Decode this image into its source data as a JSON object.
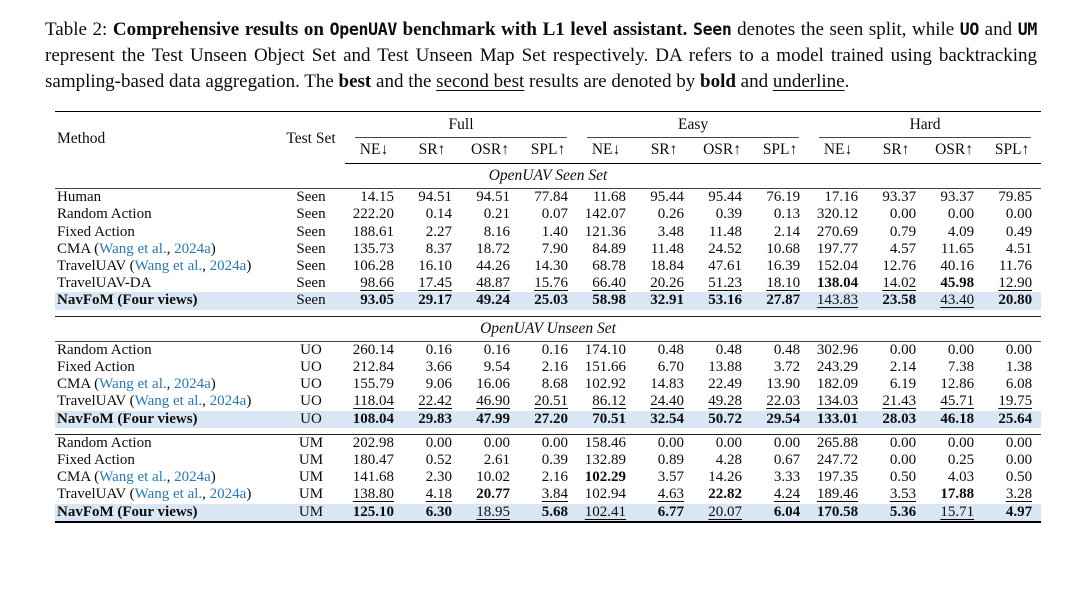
{
  "colors": {
    "highlight_row": "#d9e7f4",
    "citation_link": "#2878b5",
    "rule": "#000000",
    "background": "#ffffff"
  },
  "caption": {
    "label": "Table 2: ",
    "segments": [
      {
        "text": "Comprehensive results on ",
        "style": "bold"
      },
      {
        "text": "OpenUAV",
        "style": "bold-mono"
      },
      {
        "text": " benchmark with L1 level assistant. ",
        "style": "bold"
      },
      {
        "text": "Seen",
        "style": "bold-mono"
      },
      {
        "text": " denotes the seen split, while ",
        "style": "plain"
      },
      {
        "text": "UO",
        "style": "bold-mono"
      },
      {
        "text": " and ",
        "style": "plain"
      },
      {
        "text": "UM",
        "style": "bold-mono"
      },
      {
        "text": " represent the Test Unseen Object Set and Test Unseen Map Set respectively. DA refers to a model trained using backtracking sampling-based data aggregation. The ",
        "style": "plain"
      },
      {
        "text": "best",
        "style": "bold"
      },
      {
        "text": " and the ",
        "style": "plain"
      },
      {
        "text": "second best",
        "style": "underline"
      },
      {
        "text": " results are denoted by ",
        "style": "plain"
      },
      {
        "text": "bold",
        "style": "bold"
      },
      {
        "text": " and ",
        "style": "plain"
      },
      {
        "text": "underline",
        "style": "underline"
      },
      {
        "text": ".",
        "style": "plain"
      }
    ]
  },
  "table": {
    "header": {
      "method": "Method",
      "test_set": "Test Set",
      "groups": [
        {
          "label": "Full"
        },
        {
          "label": "Easy"
        },
        {
          "label": "Hard"
        }
      ],
      "metrics": [
        "NE↓",
        "SR↑",
        "OSR↑",
        "SPL↑"
      ]
    },
    "body": [
      {
        "type": "section",
        "label": "OpenUAV Seen Set"
      },
      {
        "type": "group",
        "rows": [
          {
            "method": "Human",
            "test_set": "Seen",
            "values": [
              "14.15",
              "94.51",
              "94.51",
              "77.84",
              "11.68",
              "95.44",
              "95.44",
              "76.19",
              "17.16",
              "93.37",
              "93.37",
              "79.85"
            ]
          },
          {
            "method": "Random Action",
            "test_set": "Seen",
            "values": [
              "222.20",
              "0.14",
              "0.21",
              "0.07",
              "142.07",
              "0.26",
              "0.39",
              "0.13",
              "320.12",
              "0.00",
              "0.00",
              "0.00"
            ]
          },
          {
            "method": "Fixed Action",
            "test_set": "Seen",
            "values": [
              "188.61",
              "2.27",
              "8.16",
              "1.40",
              "121.36",
              "3.48",
              "11.48",
              "2.14",
              "270.69",
              "0.79",
              "4.09",
              "0.49"
            ]
          },
          {
            "method": "CMA",
            "cite": {
              "authors": "Wang et al.",
              "year": "2024a"
            },
            "test_set": "Seen",
            "values": [
              "135.73",
              "8.37",
              "18.72",
              "7.90",
              "84.89",
              "11.48",
              "24.52",
              "10.68",
              "197.77",
              "4.57",
              "11.65",
              "4.51"
            ]
          },
          {
            "method": "TravelUAV",
            "cite": {
              "authors": "Wang et al.",
              "year": "2024a"
            },
            "test_set": "Seen",
            "values": [
              "106.28",
              "16.10",
              "44.26",
              "14.30",
              "68.78",
              "18.84",
              "47.61",
              "16.39",
              "152.04",
              "12.76",
              "40.16",
              "11.76"
            ]
          },
          {
            "method": "TravelUAV-DA",
            "test_set": "Seen",
            "values": [
              "98.66|u",
              "17.45|u",
              "48.87|u",
              "15.76|u",
              "66.40|u",
              "20.26|u",
              "51.23|u",
              "18.10|u",
              "138.04|b",
              "14.02|u",
              "45.98|b",
              "12.90|u"
            ]
          },
          {
            "method": "NavFoM (Four views)",
            "bold_method": true,
            "highlight": true,
            "test_set": "Seen",
            "values": [
              "93.05|b",
              "29.17|b",
              "49.24|b",
              "25.03|b",
              "58.98|b",
              "32.91|b",
              "53.16|b",
              "27.87|b",
              "143.83|u",
              "23.58|b",
              "43.40|u",
              "20.80|b"
            ]
          }
        ]
      },
      {
        "type": "section",
        "label": "OpenUAV Unseen Set"
      },
      {
        "type": "group",
        "rows": [
          {
            "method": "Random Action",
            "test_set": "UO",
            "values": [
              "260.14",
              "0.16",
              "0.16",
              "0.16",
              "174.10",
              "0.48",
              "0.48",
              "0.48",
              "302.96",
              "0.00",
              "0.00",
              "0.00"
            ]
          },
          {
            "method": "Fixed Action",
            "test_set": "UO",
            "values": [
              "212.84",
              "3.66",
              "9.54",
              "2.16",
              "151.66",
              "6.70",
              "13.88",
              "3.72",
              "243.29",
              "2.14",
              "7.38",
              "1.38"
            ]
          },
          {
            "method": "CMA",
            "cite": {
              "authors": "Wang et al.",
              "year": "2024a"
            },
            "test_set": "UO",
            "values": [
              "155.79",
              "9.06",
              "16.06",
              "8.68",
              "102.92",
              "14.83",
              "22.49",
              "13.90",
              "182.09",
              "6.19",
              "12.86",
              "6.08"
            ]
          },
          {
            "method": "TravelUAV",
            "cite": {
              "authors": "Wang et al.",
              "year": "2024a"
            },
            "test_set": "UO",
            "values": [
              "118.04|u",
              "22.42|u",
              "46.90|u",
              "20.51|u",
              "86.12|u",
              "24.40|u",
              "49.28|u",
              "22.03|u",
              "134.03|u",
              "21.43|u",
              "45.71|u",
              "19.75|u"
            ]
          },
          {
            "method": "NavFoM (Four views)",
            "bold_method": true,
            "highlight": true,
            "test_set": "UO",
            "values": [
              "108.04|b",
              "29.83|b",
              "47.99|b",
              "27.20|b",
              "70.51|b",
              "32.54|b",
              "50.72|b",
              "29.54|b",
              "133.01|b",
              "28.03|b",
              "46.18|b",
              "25.64|b"
            ]
          }
        ]
      },
      {
        "type": "group",
        "rows": [
          {
            "method": "Random Action",
            "test_set": "UM",
            "values": [
              "202.98",
              "0.00",
              "0.00",
              "0.00",
              "158.46",
              "0.00",
              "0.00",
              "0.00",
              "265.88",
              "0.00",
              "0.00",
              "0.00"
            ]
          },
          {
            "method": "Fixed Action",
            "test_set": "UM",
            "values": [
              "180.47",
              "0.52",
              "2.61",
              "0.39",
              "132.89",
              "0.89",
              "4.28",
              "0.67",
              "247.72",
              "0.00",
              "0.25",
              "0.00"
            ]
          },
          {
            "method": "CMA",
            "cite": {
              "authors": "Wang et al.",
              "year": "2024a"
            },
            "test_set": "UM",
            "values": [
              "141.68",
              "2.30",
              "10.02",
              "2.16",
              "102.29|b",
              "3.57",
              "14.26",
              "3.33",
              "197.35",
              "0.50",
              "4.03",
              "0.50"
            ]
          },
          {
            "method": "TravelUAV",
            "cite": {
              "authors": "Wang et al.",
              "year": "2024a"
            },
            "test_set": "UM",
            "values": [
              "138.80|u",
              "4.18|u",
              "20.77|b",
              "3.84|u",
              "102.94",
              "4.63|u",
              "22.82|b",
              "4.24|u",
              "189.46|u",
              "3.53|u",
              "17.88|b",
              "3.28|u"
            ]
          },
          {
            "method": "NavFoM (Four views)",
            "bold_method": true,
            "highlight": true,
            "test_set": "UM",
            "values": [
              "125.10|b",
              "6.30|b",
              "18.95|u",
              "5.68|b",
              "102.41|u",
              "6.77|b",
              "20.07|u",
              "6.04|b",
              "170.58|b",
              "5.36|b",
              "15.71|u",
              "4.97|b"
            ]
          }
        ]
      }
    ]
  }
}
